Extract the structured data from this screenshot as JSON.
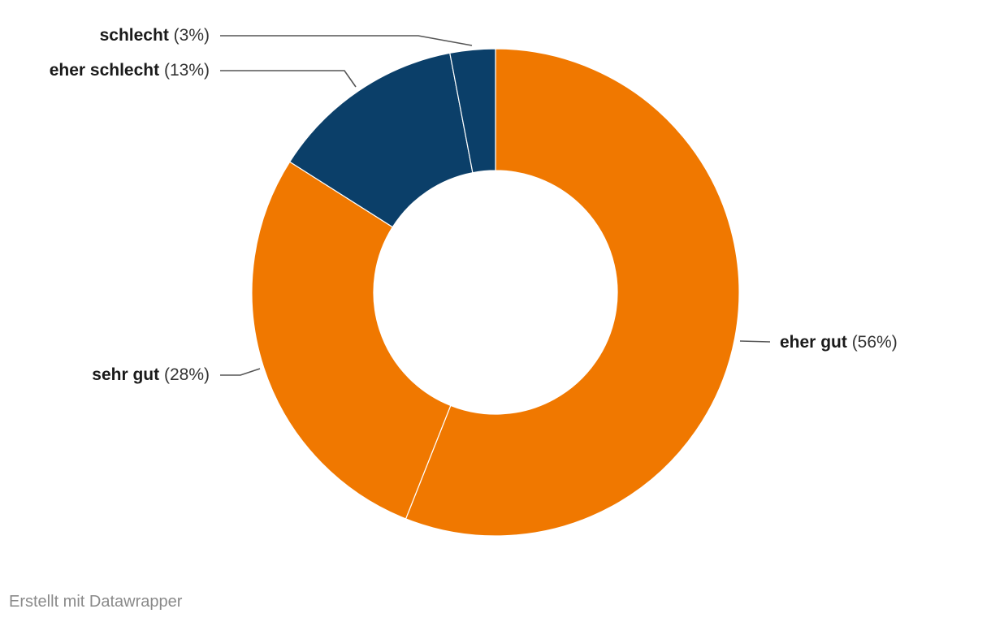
{
  "chart_data": {
    "type": "pie",
    "donut": true,
    "slices": [
      {
        "label": "eher gut",
        "value": 56,
        "pct_text": "(56%)",
        "color": "#f07800"
      },
      {
        "label": "sehr gut",
        "value": 28,
        "pct_text": "(28%)",
        "color": "#f07800"
      },
      {
        "label": "eher schlecht",
        "value": 13,
        "pct_text": "(13%)",
        "color": "#0b3f69"
      },
      {
        "label": "schlecht",
        "value": 3,
        "pct_text": "(3%)",
        "color": "#0b3f69"
      }
    ]
  },
  "footer": {
    "credit": "Erstellt mit Datawrapper"
  }
}
